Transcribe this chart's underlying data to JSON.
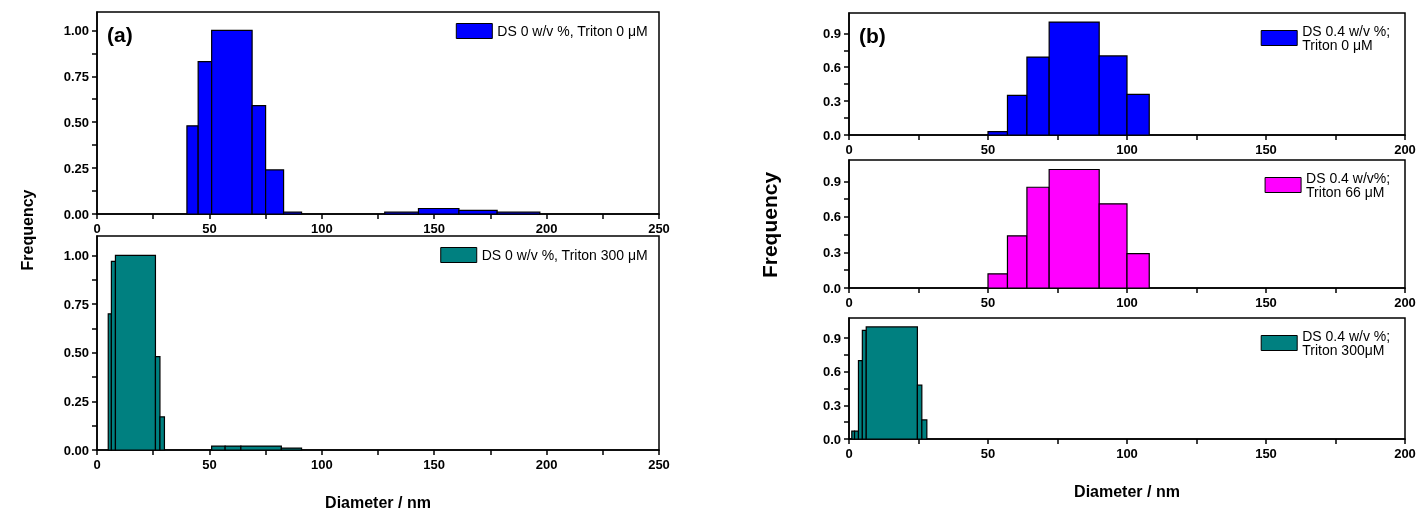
{
  "chart_data": [
    {
      "type": "histogram",
      "ylabel": "Frequency",
      "annotations": [
        "(a)"
      ],
      "legend": "top right",
      "xlim": [
        0,
        250
      ],
      "xticks": [
        0,
        {
          "value": 25,
          "label": null
        },
        50,
        {
          "value": 75,
          "label": null
        },
        100,
        {
          "value": 125,
          "label": null
        },
        150,
        {
          "value": 175,
          "label": null
        },
        200,
        {
          "value": 225,
          "label": null
        },
        250
      ],
      "ylim": [
        0,
        1.1
      ],
      "yticks": [
        {
          "value": 0,
          "label": "0.00"
        },
        {
          "value": 0.125,
          "label": null
        },
        {
          "value": 0.25,
          "label": "0.25"
        },
        {
          "value": 0.375,
          "label": null
        },
        {
          "value": 0.5,
          "label": "0.50"
        },
        {
          "value": 0.625,
          "label": null
        },
        {
          "value": 0.75,
          "label": "0.75"
        },
        {
          "value": 0.875,
          "label": null
        },
        {
          "value": 1,
          "label": "1.00"
        }
      ],
      "bins": [
        40,
        45,
        51,
        69,
        75,
        83,
        91,
        128,
        143,
        161,
        178,
        197
      ],
      "series": [
        {
          "name": "DS 0 w/v %, Triton 0 μM",
          "color": "#0000ff",
          "values": [
            0.48,
            0.83,
            1.0,
            0.59,
            0.24,
            0.01,
            0,
            0.01,
            0.03,
            0.02,
            0.01
          ]
        }
      ]
    },
    {
      "type": "histogram",
      "xlabel": "Diameter / nm",
      "legend": "top right",
      "xlim": [
        0,
        250
      ],
      "xticks": [
        0,
        {
          "value": 25,
          "label": null
        },
        50,
        {
          "value": 75,
          "label": null
        },
        100,
        {
          "value": 125,
          "label": null
        },
        150,
        {
          "value": 175,
          "label": null
        },
        200,
        {
          "value": 225,
          "label": null
        },
        250
      ],
      "ylim": [
        0,
        1.1
      ],
      "yticks": [
        {
          "value": 0,
          "label": "0.00"
        },
        {
          "value": 0.125,
          "label": null
        },
        {
          "value": 0.25,
          "label": "0.25"
        },
        {
          "value": 0.375,
          "label": null
        },
        {
          "value": 0.5,
          "label": "0.50"
        },
        {
          "value": 0.625,
          "label": null
        },
        {
          "value": 0.75,
          "label": "0.75"
        },
        {
          "value": 0.875,
          "label": null
        },
        {
          "value": 1,
          "label": "1.00"
        }
      ],
      "bins": [
        5,
        6.4,
        8.2,
        26,
        28,
        30,
        51,
        57,
        64,
        82,
        91
      ],
      "series": [
        {
          "name": "DS 0 w/v %, Triton 300 μM",
          "color": "#008080",
          "values": [
            0.7,
            0.97,
            1.0,
            0.48,
            0.17,
            0,
            0.02,
            0.02,
            0.02,
            0.01
          ]
        }
      ]
    },
    {
      "type": "histogram",
      "ylabel": "Frequency",
      "annotations": [
        "(b)"
      ],
      "legend": "top right",
      "xlim": [
        0,
        200
      ],
      "xticks": [
        0,
        {
          "value": 25,
          "label": null
        },
        50,
        {
          "value": 75,
          "label": null
        },
        100,
        {
          "value": 125,
          "label": null
        },
        150,
        {
          "value": 175,
          "label": null
        },
        200
      ],
      "ylim": [
        0,
        1.08
      ],
      "yticks": [
        {
          "value": 0,
          "label": "0.0"
        },
        {
          "value": 0.15,
          "label": null
        },
        {
          "value": 0.3,
          "label": "0.3"
        },
        {
          "value": 0.45,
          "label": null
        },
        {
          "value": 0.6,
          "label": "0.6"
        },
        {
          "value": 0.75,
          "label": null
        },
        {
          "value": 0.9,
          "label": "0.9"
        }
      ],
      "bins": [
        50,
        57,
        64,
        72,
        90,
        100,
        108
      ],
      "series": [
        {
          "name": "DS 0.4 w/v %; Triton 0 μM",
          "color": "#0000ff",
          "values": [
            0.03,
            0.35,
            0.69,
            1.0,
            0.7,
            0.36
          ]
        }
      ]
    },
    {
      "type": "histogram",
      "legend": "top right",
      "xlim": [
        0,
        200
      ],
      "xticks": [
        0,
        {
          "value": 25,
          "label": null
        },
        50,
        {
          "value": 75,
          "label": null
        },
        100,
        {
          "value": 125,
          "label": null
        },
        150,
        {
          "value": 175,
          "label": null
        },
        200
      ],
      "ylim": [
        0,
        1.08
      ],
      "yticks": [
        {
          "value": 0,
          "label": "0.0"
        },
        {
          "value": 0.15,
          "label": null
        },
        {
          "value": 0.3,
          "label": "0.3"
        },
        {
          "value": 0.45,
          "label": null
        },
        {
          "value": 0.6,
          "label": "0.6"
        },
        {
          "value": 0.75,
          "label": null
        },
        {
          "value": 0.9,
          "label": "0.9"
        }
      ],
      "bins": [
        50,
        57,
        64,
        72,
        90,
        100,
        108
      ],
      "series": [
        {
          "name": "DS 0.4 w/v%; Triton 66 μM",
          "color": "#ff00ff",
          "values": [
            0.12,
            0.44,
            0.85,
            1.0,
            0.71,
            0.29
          ]
        }
      ]
    },
    {
      "type": "histogram",
      "xlabel": "Diameter / nm",
      "legend": "top right",
      "xlim": [
        0,
        200
      ],
      "xticks": [
        0,
        {
          "value": 25,
          "label": null
        },
        50,
        {
          "value": 75,
          "label": null
        },
        100,
        {
          "value": 125,
          "label": null
        },
        150,
        {
          "value": 175,
          "label": null
        },
        200
      ],
      "ylim": [
        0,
        1.08
      ],
      "yticks": [
        {
          "value": 0,
          "label": "0.0"
        },
        {
          "value": 0.15,
          "label": null
        },
        {
          "value": 0.3,
          "label": "0.3"
        },
        {
          "value": 0.45,
          "label": null
        },
        {
          "value": 0.6,
          "label": "0.6"
        },
        {
          "value": 0.75,
          "label": null
        },
        {
          "value": 0.9,
          "label": "0.9"
        }
      ],
      "bins": [
        1,
        2,
        3.4,
        4.8,
        6.2,
        24.6,
        26.2,
        28
      ],
      "series": [
        {
          "name": "DS 0.4 w/v %; Triton 300μM",
          "color": "#008080",
          "values": [
            0.07,
            0.07,
            0.7,
            0.97,
            1.0,
            0.48,
            0.17
          ]
        }
      ]
    }
  ]
}
